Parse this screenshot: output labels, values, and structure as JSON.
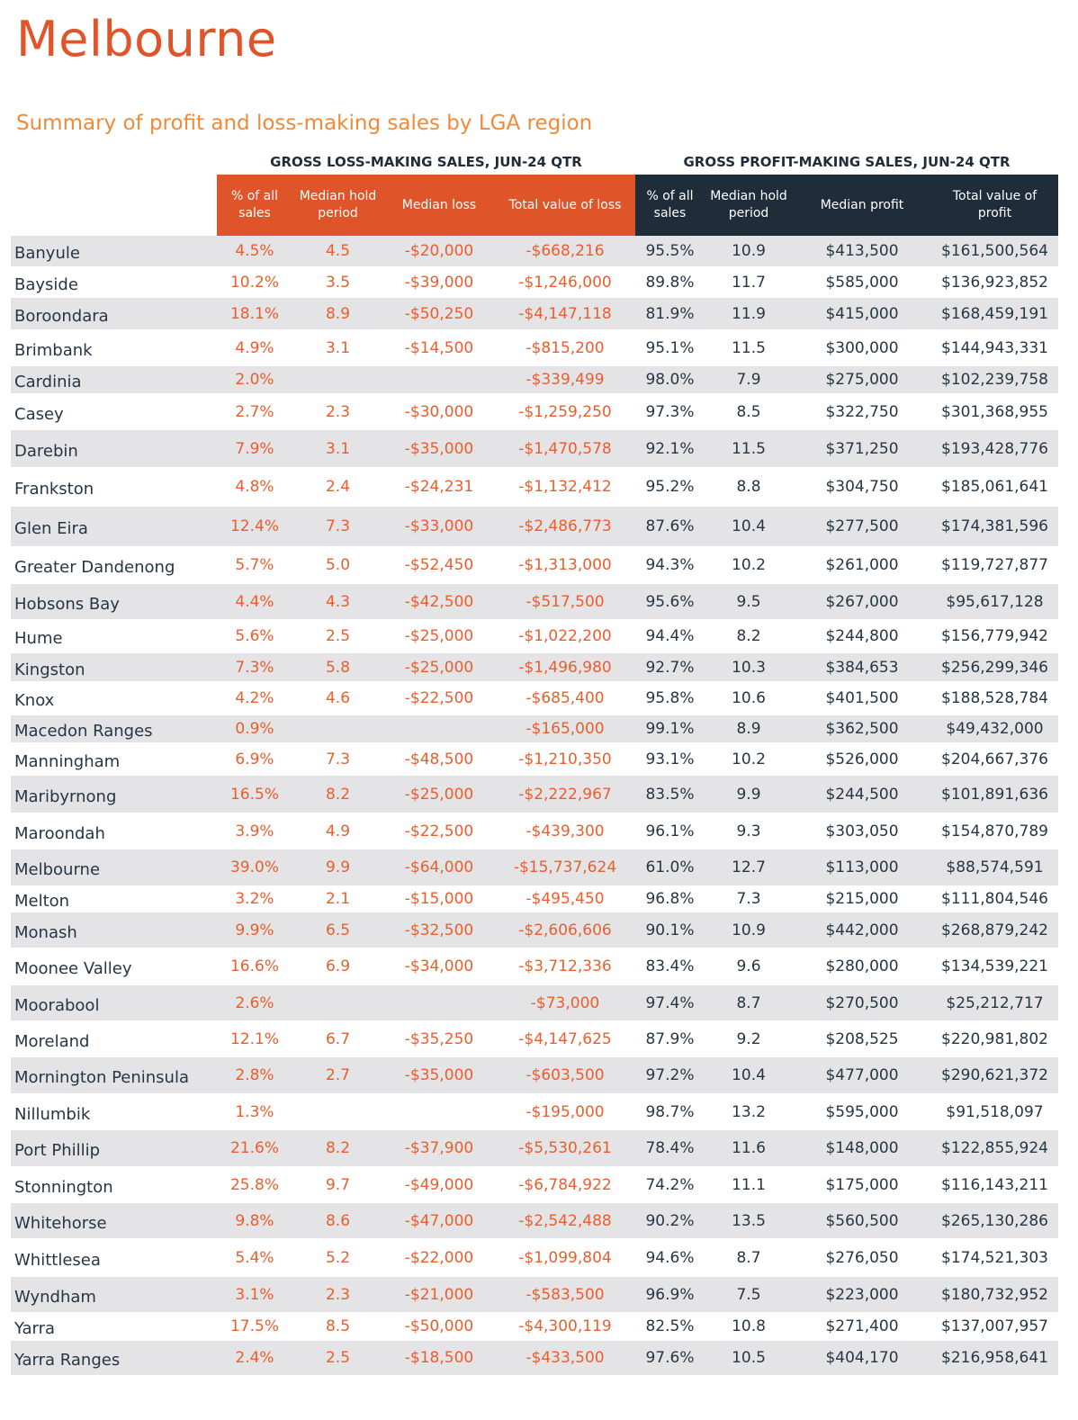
{
  "page": {
    "title": "Melbourne",
    "subtitle": "Summary of profit and loss-making sales by LGA region"
  },
  "table": {
    "loss_group_heading": "GROSS LOSS-MAKING SALES, JUN-24 QTR",
    "profit_group_heading": "GROSS PROFIT-MAKING SALES, JUN-24 QTR",
    "columns": [
      "% of all sales",
      "Median hold period",
      "Median loss",
      "Total value of loss",
      "% of all sales",
      "Median hold period",
      "Median profit",
      "Total value of profit"
    ],
    "rows": [
      [
        "Banyule",
        "4.5%",
        "4.5",
        "-$20,000",
        "-$668,216",
        "95.5%",
        "10.9",
        "$413,500",
        "$161,500,564"
      ],
      [
        "Bayside",
        "10.2%",
        "3.5",
        "-$39,000",
        "-$1,246,000",
        "89.8%",
        "11.7",
        "$585,000",
        "$136,923,852"
      ],
      [
        "Boroondara",
        "18.1%",
        "8.9",
        "-$50,250",
        "-$4,147,118",
        "81.9%",
        "11.9",
        "$415,000",
        "$168,459,191"
      ],
      [
        "Brimbank",
        "4.9%",
        "3.1",
        "-$14,500",
        "-$815,200",
        "95.1%",
        "11.5",
        "$300,000",
        "$144,943,331"
      ],
      [
        "Cardinia",
        "2.0%",
        "",
        "",
        "-$339,499",
        "98.0%",
        "7.9",
        "$275,000",
        "$102,239,758"
      ],
      [
        "Casey",
        "2.7%",
        "2.3",
        "-$30,000",
        "-$1,259,250",
        "97.3%",
        "8.5",
        "$322,750",
        "$301,368,955"
      ],
      [
        "Darebin",
        "7.9%",
        "3.1",
        "-$35,000",
        "-$1,470,578",
        "92.1%",
        "11.5",
        "$371,250",
        "$193,428,776"
      ],
      [
        "Frankston",
        "4.8%",
        "2.4",
        "-$24,231",
        "-$1,132,412",
        "95.2%",
        "8.8",
        "$304,750",
        "$185,061,641"
      ],
      [
        "Glen Eira",
        "12.4%",
        "7.3",
        "-$33,000",
        "-$2,486,773",
        "87.6%",
        "10.4",
        "$277,500",
        "$174,381,596"
      ],
      [
        "Greater Dandenong",
        "5.7%",
        "5.0",
        "-$52,450",
        "-$1,313,000",
        "94.3%",
        "10.2",
        "$261,000",
        "$119,727,877"
      ],
      [
        "Hobsons Bay",
        "4.4%",
        "4.3",
        "-$42,500",
        "-$517,500",
        "95.6%",
        "9.5",
        "$267,000",
        "$95,617,128"
      ],
      [
        "Hume",
        "5.6%",
        "2.5",
        "-$25,000",
        "-$1,022,200",
        "94.4%",
        "8.2",
        "$244,800",
        "$156,779,942"
      ],
      [
        "Kingston",
        "7.3%",
        "5.8",
        "-$25,000",
        "-$1,496,980",
        "92.7%",
        "10.3",
        "$384,653",
        "$256,299,346"
      ],
      [
        "Knox",
        "4.2%",
        "4.6",
        "-$22,500",
        "-$685,400",
        "95.8%",
        "10.6",
        "$401,500",
        "$188,528,784"
      ],
      [
        "Macedon Ranges",
        "0.9%",
        "",
        "",
        "-$165,000",
        "99.1%",
        "8.9",
        "$362,500",
        "$49,432,000"
      ],
      [
        "Manningham",
        "6.9%",
        "7.3",
        "-$48,500",
        "-$1,210,350",
        "93.1%",
        "10.2",
        "$526,000",
        "$204,667,376"
      ],
      [
        "Maribyrnong",
        "16.5%",
        "8.2",
        "-$25,000",
        "-$2,222,967",
        "83.5%",
        "9.9",
        "$244,500",
        "$101,891,636"
      ],
      [
        "Maroondah",
        "3.9%",
        "4.9",
        "-$22,500",
        "-$439,300",
        "96.1%",
        "9.3",
        "$303,050",
        "$154,870,789"
      ],
      [
        "Melbourne",
        "39.0%",
        "9.9",
        "-$64,000",
        "-$15,737,624",
        "61.0%",
        "12.7",
        "$113,000",
        "$88,574,591"
      ],
      [
        "Melton",
        "3.2%",
        "2.1",
        "-$15,000",
        "-$495,450",
        "96.8%",
        "7.3",
        "$215,000",
        "$111,804,546"
      ],
      [
        "Monash",
        "9.9%",
        "6.5",
        "-$32,500",
        "-$2,606,606",
        "90.1%",
        "10.9",
        "$442,000",
        "$268,879,242"
      ],
      [
        "Moonee Valley",
        "16.6%",
        "6.9",
        "-$34,000",
        "-$3,712,336",
        "83.4%",
        "9.6",
        "$280,000",
        "$134,539,221"
      ],
      [
        "Moorabool",
        "2.6%",
        "",
        "",
        "-$73,000",
        "97.4%",
        "8.7",
        "$270,500",
        "$25,212,717"
      ],
      [
        "Moreland",
        "12.1%",
        "6.7",
        "-$35,250",
        "-$4,147,625",
        "87.9%",
        "9.2",
        "$208,525",
        "$220,981,802"
      ],
      [
        "Mornington Peninsula",
        "2.8%",
        "2.7",
        "-$35,000",
        "-$603,500",
        "97.2%",
        "10.4",
        "$477,000",
        "$290,621,372"
      ],
      [
        "Nillumbik",
        "1.3%",
        "",
        "",
        "-$195,000",
        "98.7%",
        "13.2",
        "$595,000",
        "$91,518,097"
      ],
      [
        "Port Phillip",
        "21.6%",
        "8.2",
        "-$37,900",
        "-$5,530,261",
        "78.4%",
        "11.6",
        "$148,000",
        "$122,855,924"
      ],
      [
        "Stonnington",
        "25.8%",
        "9.7",
        "-$49,000",
        "-$6,784,922",
        "74.2%",
        "11.1",
        "$175,000",
        "$116,143,211"
      ],
      [
        "Whitehorse",
        "9.8%",
        "8.6",
        "-$47,000",
        "-$2,542,488",
        "90.2%",
        "13.5",
        "$560,500",
        "$265,130,286"
      ],
      [
        "Whittlesea",
        "5.4%",
        "5.2",
        "-$22,000",
        "-$1,099,804",
        "94.6%",
        "8.7",
        "$276,050",
        "$174,521,303"
      ],
      [
        "Wyndham",
        "3.1%",
        "2.3",
        "-$21,000",
        "-$583,500",
        "96.9%",
        "7.5",
        "$223,000",
        "$180,732,952"
      ],
      [
        "Yarra",
        "17.5%",
        "8.5",
        "-$50,000",
        "-$4,300,119",
        "82.5%",
        "10.8",
        "$271,400",
        "$137,007,957"
      ],
      [
        "Yarra Ranges",
        "2.4%",
        "2.5",
        "-$18,500",
        "-$433,500",
        "97.6%",
        "10.5",
        "$404,170",
        "$216,958,641"
      ]
    ]
  },
  "colors": {
    "title": "#e0542a",
    "subtitle": "#ef8a3a",
    "loss_header_bg": "#e0542a",
    "profit_header_bg": "#1f2d3a",
    "loss_values": "#ec5d2c",
    "body_text": "#263644",
    "band_row_bg": "#e4e4e6"
  }
}
